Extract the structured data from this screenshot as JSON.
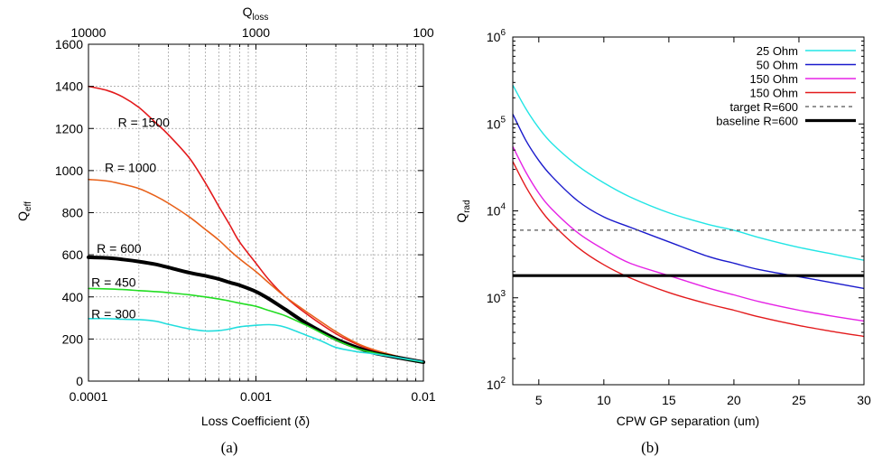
{
  "chart_data": [
    {
      "type": "line",
      "caption": "(a)",
      "xlabel": "Loss Coefficient (δ)",
      "ylabel_main": "Q",
      "ylabel_sub": "eff",
      "x2label_main": "Q",
      "x2label_sub": "loss",
      "xscale": "log",
      "xlim": [
        0.0001,
        0.01
      ],
      "ylim": [
        0,
        1600
      ],
      "x_tick_labels": [
        {
          "value": 0.0001,
          "label": "0.0001"
        },
        {
          "value": 0.001,
          "label": "0.001"
        },
        {
          "value": 0.01,
          "label": "0.01"
        }
      ],
      "x2_tick_labels": [
        {
          "value": 0.0001,
          "label": "10000"
        },
        {
          "value": 0.001,
          "label": "1000"
        },
        {
          "value": 0.01,
          "label": "100"
        }
      ],
      "y_ticks": [
        0,
        200,
        400,
        600,
        800,
        1000,
        1200,
        1400,
        1600
      ],
      "grid": true,
      "series": [
        {
          "label": "R = 1500",
          "color": "#e31a1c",
          "width": 1.6,
          "label_at": [
            0.00015,
            1230
          ],
          "points": [
            [
              0.0001,
              1400
            ],
            [
              0.00013,
              1380
            ],
            [
              0.00016,
              1350
            ],
            [
              0.0002,
              1300
            ],
            [
              0.00025,
              1230
            ],
            [
              0.0003,
              1170
            ],
            [
              0.0004,
              1060
            ],
            [
              0.0005,
              940
            ],
            [
              0.0006,
              830
            ],
            [
              0.0007,
              740
            ],
            [
              0.0008,
              660
            ],
            [
              0.001,
              560
            ],
            [
              0.0012,
              480
            ],
            [
              0.0015,
              400
            ],
            [
              0.002,
              320
            ],
            [
              0.003,
              225
            ],
            [
              0.004,
              175
            ],
            [
              0.005,
              145
            ],
            [
              0.007,
              115
            ],
            [
              0.01,
              90
            ]
          ]
        },
        {
          "label": "R = 1000",
          "color": "#e8611a",
          "width": 1.6,
          "label_at": [
            0.000125,
            1015
          ],
          "points": [
            [
              0.0001,
              958
            ],
            [
              0.00013,
              950
            ],
            [
              0.00016,
              935
            ],
            [
              0.0002,
              915
            ],
            [
              0.00025,
              880
            ],
            [
              0.0003,
              845
            ],
            [
              0.0004,
              780
            ],
            [
              0.0005,
              720
            ],
            [
              0.0006,
              670
            ],
            [
              0.0007,
              620
            ],
            [
              0.0008,
              580
            ],
            [
              0.001,
              520
            ],
            [
              0.0012,
              465
            ],
            [
              0.0015,
              400
            ],
            [
              0.002,
              330
            ],
            [
              0.003,
              235
            ],
            [
              0.004,
              180
            ],
            [
              0.005,
              150
            ],
            [
              0.007,
              118
            ],
            [
              0.01,
              92
            ]
          ]
        },
        {
          "label": "R = 600",
          "color": "#000000",
          "width": 4,
          "label_at": [
            0.000112,
            630
          ],
          "points": [
            [
              0.0001,
              588
            ],
            [
              0.00013,
              585
            ],
            [
              0.00016,
              578
            ],
            [
              0.0002,
              568
            ],
            [
              0.00025,
              555
            ],
            [
              0.0003,
              540
            ],
            [
              0.0004,
              515
            ],
            [
              0.0005,
              500
            ],
            [
              0.0006,
              485
            ],
            [
              0.0007,
              468
            ],
            [
              0.0008,
              455
            ],
            [
              0.001,
              425
            ],
            [
              0.0012,
              390
            ],
            [
              0.0015,
              340
            ],
            [
              0.002,
              275
            ],
            [
              0.003,
              200
            ],
            [
              0.004,
              160
            ],
            [
              0.005,
              135
            ],
            [
              0.007,
              112
            ],
            [
              0.01,
              90
            ]
          ]
        },
        {
          "label": "R = 450",
          "color": "#22dd22",
          "width": 1.6,
          "label_at": [
            0.000104,
            470
          ],
          "points": [
            [
              0.0001,
              440
            ],
            [
              0.00013,
              438
            ],
            [
              0.00016,
              435
            ],
            [
              0.0002,
              430
            ],
            [
              0.00025,
              425
            ],
            [
              0.0003,
              420
            ],
            [
              0.0004,
              410
            ],
            [
              0.0005,
              400
            ],
            [
              0.0006,
              390
            ],
            [
              0.0007,
              380
            ],
            [
              0.0008,
              370
            ],
            [
              0.001,
              355
            ],
            [
              0.0012,
              335
            ],
            [
              0.0015,
              310
            ],
            [
              0.002,
              265
            ],
            [
              0.003,
              195
            ],
            [
              0.004,
              155
            ],
            [
              0.005,
              135
            ],
            [
              0.007,
              112
            ],
            [
              0.01,
              90
            ]
          ]
        },
        {
          "label": "R = 300",
          "color": "#22dddd",
          "width": 1.6,
          "label_at": [
            0.000104,
            320
          ],
          "points": [
            [
              0.0001,
              297
            ],
            [
              0.00013,
              297
            ],
            [
              0.00016,
              294
            ],
            [
              0.0002,
              292
            ],
            [
              0.00025,
              285
            ],
            [
              0.0003,
              270
            ],
            [
              0.0004,
              248
            ],
            [
              0.0005,
              238
            ],
            [
              0.0006,
              240
            ],
            [
              0.0007,
              248
            ],
            [
              0.0008,
              258
            ],
            [
              0.001,
              265
            ],
            [
              0.0012,
              268
            ],
            [
              0.0014,
              262
            ],
            [
              0.0016,
              248
            ],
            [
              0.002,
              218
            ],
            [
              0.0025,
              188
            ],
            [
              0.003,
              160
            ],
            [
              0.004,
              140
            ],
            [
              0.005,
              130
            ],
            [
              0.007,
              112
            ],
            [
              0.01,
              92
            ]
          ]
        }
      ]
    },
    {
      "type": "line",
      "caption": "(b)",
      "xlabel": "CPW GP separation (um)",
      "ylabel_main": "Q",
      "ylabel_sub": "rad",
      "yscale": "log",
      "xlim": [
        3,
        30
      ],
      "ylim": [
        100,
        1000000
      ],
      "x_ticks": [
        5,
        10,
        15,
        20,
        25,
        30
      ],
      "y_ticks": [
        {
          "value": 100,
          "base": "10",
          "exp": "2"
        },
        {
          "value": 1000,
          "base": "10",
          "exp": "3"
        },
        {
          "value": 10000,
          "base": "10",
          "exp": "4"
        },
        {
          "value": 100000,
          "base": "10",
          "exp": "5"
        },
        {
          "value": 1000000,
          "base": "10",
          "exp": "6"
        }
      ],
      "grid": false,
      "legend_position": "top-right",
      "series": [
        {
          "name": "25 Ohm",
          "color": "#22e5e5",
          "width": 1.4,
          "dash": "",
          "points": [
            [
              3,
              280000
            ],
            [
              4,
              150000
            ],
            [
              5,
              90000
            ],
            [
              6,
              60000
            ],
            [
              8,
              33000
            ],
            [
              10,
              21000
            ],
            [
              12,
              14500
            ],
            [
              15,
              9500
            ],
            [
              18,
              7000
            ],
            [
              20,
              6000
            ],
            [
              22,
              4900
            ],
            [
              25,
              3800
            ],
            [
              28,
              3100
            ],
            [
              30,
              2700
            ]
          ]
        },
        {
          "name": "50 Ohm",
          "color": "#1a1acc",
          "width": 1.4,
          "dash": "",
          "points": [
            [
              3,
              130000
            ],
            [
              4,
              65000
            ],
            [
              5,
              38000
            ],
            [
              6,
              25000
            ],
            [
              8,
              13000
            ],
            [
              10,
              8500
            ],
            [
              12,
              6500
            ],
            [
              15,
              4400
            ],
            [
              18,
              3000
            ],
            [
              20,
              2500
            ],
            [
              22,
              2100
            ],
            [
              25,
              1750
            ],
            [
              28,
              1450
            ],
            [
              30,
              1280
            ]
          ]
        },
        {
          "name": "150 Ohm",
          "color": "#e522e5",
          "width": 1.4,
          "dash": "",
          "points": [
            [
              3,
              55000
            ],
            [
              4,
              28000
            ],
            [
              5,
              16000
            ],
            [
              6,
              10500
            ],
            [
              8,
              5600
            ],
            [
              10,
              3600
            ],
            [
              12,
              2500
            ],
            [
              15,
              1800
            ],
            [
              18,
              1300
            ],
            [
              20,
              1080
            ],
            [
              22,
              900
            ],
            [
              25,
              720
            ],
            [
              28,
              600
            ],
            [
              30,
              540
            ]
          ]
        },
        {
          "name": "150 Ohm",
          "color": "#e31a1c",
          "width": 1.4,
          "dash": "",
          "points": [
            [
              3,
              37000
            ],
            [
              4,
              19000
            ],
            [
              5,
              11000
            ],
            [
              6,
              7200
            ],
            [
              8,
              3800
            ],
            [
              10,
              2400
            ],
            [
              12,
              1700
            ],
            [
              15,
              1150
            ],
            [
              18,
              850
            ],
            [
              20,
              720
            ],
            [
              22,
              600
            ],
            [
              25,
              480
            ],
            [
              28,
              400
            ],
            [
              30,
              360
            ]
          ]
        },
        {
          "name": "target R=600",
          "color": "#555555",
          "width": 1.2,
          "dash": "4,4",
          "points": [
            [
              3,
              6000
            ],
            [
              30,
              6000
            ]
          ]
        },
        {
          "name": "baseline R=600",
          "color": "#000000",
          "width": 3.2,
          "dash": "",
          "points": [
            [
              3,
              1800
            ],
            [
              30,
              1800
            ]
          ]
        }
      ]
    }
  ]
}
